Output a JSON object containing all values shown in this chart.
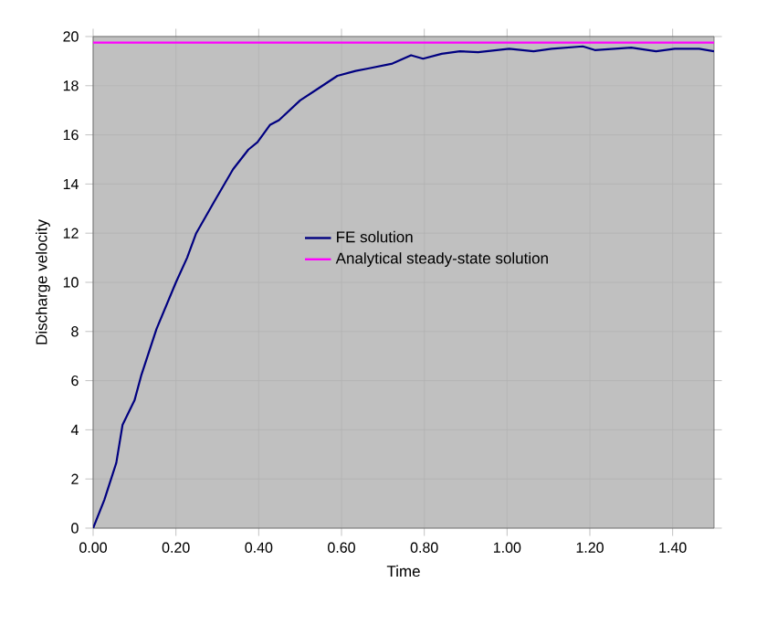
{
  "chart_data": {
    "type": "line",
    "xlabel": "Time",
    "ylabel": "Discharge velocity",
    "xlim": [
      0,
      1.5
    ],
    "xticks": [
      {
        "value": 0,
        "label": "0.00"
      },
      {
        "value": 0.2,
        "label": "0.20"
      },
      {
        "value": 0.4,
        "label": "0.40"
      },
      {
        "value": 0.6,
        "label": "0.60"
      },
      {
        "value": 0.8,
        "label": "0.80"
      },
      {
        "value": 1.0,
        "label": "1.00"
      },
      {
        "value": 1.2,
        "label": "1.20"
      },
      {
        "value": 1.4,
        "label": "1.40"
      }
    ],
    "ylim": [
      0,
      20
    ],
    "yticks": [
      0,
      2,
      4,
      6,
      8,
      10,
      12,
      14,
      16,
      18,
      20
    ],
    "grid": true,
    "legend": "right",
    "marker": "none",
    "line_style": "solid",
    "series": [
      {
        "name": "FE solution",
        "color": "#000080",
        "x": [
          0,
          0.027,
          0.056,
          0.071,
          0.1,
          0.116,
          0.153,
          0.2,
          0.227,
          0.249,
          0.293,
          0.338,
          0.375,
          0.397,
          0.427,
          0.449,
          0.5,
          0.545,
          0.59,
          0.634,
          0.664,
          0.723,
          0.768,
          0.797,
          0.842,
          0.886,
          0.93,
          1.005,
          1.064,
          1.108,
          1.183,
          1.212,
          1.3,
          1.36,
          1.405,
          1.464,
          1.5
        ],
        "values": [
          0,
          1.15,
          2.66,
          4.2,
          5.2,
          6.2,
          8.1,
          10.0,
          11.0,
          12.0,
          13.3,
          14.6,
          15.4,
          15.7,
          16.4,
          16.6,
          17.4,
          17.9,
          18.4,
          18.6,
          18.7,
          18.9,
          19.24,
          19.1,
          19.3,
          19.4,
          19.36,
          19.5,
          19.4,
          19.5,
          19.6,
          19.45,
          19.55,
          19.4,
          19.5,
          19.5,
          19.4
        ]
      },
      {
        "name": "Analytical steady-state solution",
        "color": "#ff00ff",
        "x": [
          0,
          1.5
        ],
        "values": [
          19.75,
          19.75
        ]
      }
    ]
  }
}
